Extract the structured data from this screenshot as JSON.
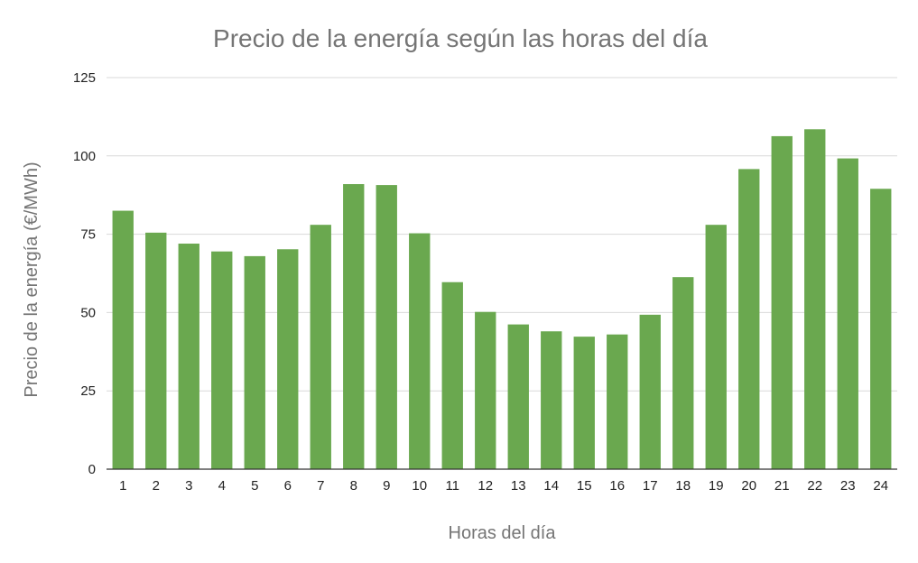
{
  "chart_data": {
    "type": "bar",
    "title": "Precio de la energía según las horas del día",
    "xlabel": "Horas del día",
    "ylabel": "Precio de la energía (€/MWh)",
    "categories": [
      "1",
      "2",
      "3",
      "4",
      "5",
      "6",
      "7",
      "8",
      "9",
      "10",
      "11",
      "12",
      "13",
      "14",
      "15",
      "16",
      "17",
      "18",
      "19",
      "20",
      "21",
      "22",
      "23",
      "24"
    ],
    "values": [
      82.5,
      75.5,
      72,
      69.5,
      68,
      70.2,
      78,
      91,
      90.7,
      75.3,
      59.7,
      50.2,
      46.2,
      44,
      42.3,
      43,
      49.3,
      61.3,
      78,
      95.8,
      106.3,
      108.5,
      99.2,
      89.5
    ],
    "ylim": [
      0,
      125
    ],
    "yticks": [
      0,
      25,
      50,
      75,
      100,
      125
    ],
    "grid": true,
    "legend": "none",
    "bar_color": "#6aa84f"
  }
}
